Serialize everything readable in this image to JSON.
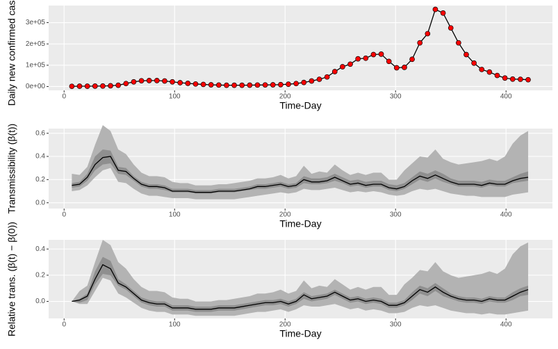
{
  "chart_data": [
    {
      "type": "line",
      "y_label": "Daily new confirmed cases",
      "x_label": "Time-Day",
      "x": [
        7,
        14,
        21,
        28,
        35,
        42,
        49,
        56,
        63,
        70,
        77,
        84,
        91,
        98,
        105,
        112,
        119,
        126,
        133,
        140,
        147,
        154,
        161,
        168,
        175,
        182,
        189,
        196,
        203,
        210,
        217,
        224,
        231,
        238,
        245,
        252,
        259,
        266,
        273,
        280,
        287,
        294,
        301,
        308,
        315,
        322,
        329,
        336,
        343,
        350,
        357,
        364,
        371,
        378,
        385,
        392,
        399,
        406,
        413,
        420
      ],
      "values": [
        1000,
        1500,
        1500,
        2000,
        2500,
        3500,
        6000,
        14000,
        22000,
        27000,
        28000,
        28000,
        26000,
        22000,
        18000,
        15000,
        12000,
        10000,
        8000,
        7000,
        6000,
        6000,
        6000,
        6500,
        7000,
        7500,
        8000,
        9000,
        11000,
        14000,
        19000,
        26000,
        34000,
        45000,
        70000,
        93000,
        105000,
        130000,
        133000,
        150000,
        152000,
        118000,
        88000,
        90000,
        128000,
        205000,
        248000,
        362000,
        345000,
        275000,
        205000,
        150000,
        110000,
        80000,
        68000,
        52000,
        40000,
        35000,
        34000,
        32000
      ],
      "color": "#000000",
      "marker_color": "#ff0000",
      "xlim": [
        -14,
        442
      ],
      "xticks": [
        0,
        100,
        200,
        300,
        400
      ],
      "ylim": [
        -18000,
        380000
      ],
      "yticks": [
        {
          "value": 0,
          "label": "0e+00"
        },
        {
          "value": 100000,
          "label": "1e+05"
        },
        {
          "value": 200000,
          "label": "2e+05"
        },
        {
          "value": 300000,
          "label": "3e+05"
        }
      ],
      "grid": true
    },
    {
      "type": "line",
      "y_label": "Transmissibility (β(t))",
      "x_label": "Time-Day",
      "x": [
        7,
        14,
        21,
        28,
        35,
        42,
        49,
        56,
        63,
        70,
        77,
        84,
        91,
        98,
        105,
        112,
        119,
        126,
        133,
        140,
        147,
        154,
        161,
        168,
        175,
        182,
        189,
        196,
        203,
        210,
        217,
        224,
        231,
        238,
        245,
        252,
        259,
        266,
        273,
        280,
        287,
        294,
        301,
        308,
        315,
        322,
        329,
        336,
        343,
        350,
        357,
        364,
        371,
        378,
        385,
        392,
        399,
        406,
        413,
        420
      ],
      "values": [
        0.15,
        0.16,
        0.22,
        0.33,
        0.39,
        0.4,
        0.28,
        0.27,
        0.21,
        0.16,
        0.14,
        0.14,
        0.13,
        0.1,
        0.1,
        0.1,
        0.09,
        0.09,
        0.09,
        0.1,
        0.1,
        0.1,
        0.11,
        0.12,
        0.14,
        0.14,
        0.15,
        0.16,
        0.14,
        0.15,
        0.2,
        0.18,
        0.18,
        0.19,
        0.22,
        0.19,
        0.16,
        0.17,
        0.15,
        0.16,
        0.16,
        0.13,
        0.12,
        0.14,
        0.19,
        0.23,
        0.21,
        0.24,
        0.21,
        0.18,
        0.16,
        0.16,
        0.16,
        0.15,
        0.17,
        0.16,
        0.16,
        0.19,
        0.21,
        0.22
      ],
      "inner_lower": [
        0.13,
        0.14,
        0.19,
        0.28,
        0.33,
        0.34,
        0.25,
        0.24,
        0.19,
        0.14,
        0.12,
        0.12,
        0.11,
        0.09,
        0.09,
        0.09,
        0.08,
        0.08,
        0.08,
        0.09,
        0.09,
        0.09,
        0.1,
        0.11,
        0.12,
        0.12,
        0.13,
        0.14,
        0.12,
        0.13,
        0.17,
        0.16,
        0.16,
        0.17,
        0.19,
        0.17,
        0.14,
        0.15,
        0.13,
        0.14,
        0.14,
        0.11,
        0.1,
        0.12,
        0.16,
        0.2,
        0.18,
        0.21,
        0.18,
        0.16,
        0.14,
        0.14,
        0.14,
        0.13,
        0.15,
        0.14,
        0.14,
        0.17,
        0.18,
        0.19
      ],
      "inner_upper": [
        0.17,
        0.18,
        0.25,
        0.4,
        0.46,
        0.45,
        0.31,
        0.3,
        0.23,
        0.18,
        0.16,
        0.16,
        0.15,
        0.12,
        0.12,
        0.12,
        0.11,
        0.11,
        0.11,
        0.12,
        0.12,
        0.12,
        0.13,
        0.14,
        0.16,
        0.16,
        0.17,
        0.18,
        0.16,
        0.17,
        0.23,
        0.21,
        0.21,
        0.22,
        0.25,
        0.22,
        0.19,
        0.2,
        0.18,
        0.19,
        0.19,
        0.16,
        0.15,
        0.17,
        0.22,
        0.27,
        0.25,
        0.28,
        0.25,
        0.21,
        0.19,
        0.19,
        0.19,
        0.18,
        0.2,
        0.19,
        0.19,
        0.22,
        0.25,
        0.27
      ],
      "outer_lower": [
        0.1,
        0.11,
        0.15,
        0.22,
        0.28,
        0.3,
        0.18,
        0.17,
        0.12,
        0.08,
        0.06,
        0.06,
        0.05,
        0.04,
        0.04,
        0.04,
        0.03,
        0.03,
        0.03,
        0.03,
        0.03,
        0.03,
        0.04,
        0.05,
        0.06,
        0.07,
        0.08,
        0.09,
        0.08,
        0.09,
        0.12,
        0.11,
        0.11,
        0.12,
        0.13,
        0.11,
        0.09,
        0.1,
        0.09,
        0.1,
        0.09,
        0.07,
        0.06,
        0.07,
        0.1,
        0.12,
        0.11,
        0.12,
        0.1,
        0.08,
        0.07,
        0.06,
        0.06,
        0.05,
        0.05,
        0.05,
        0.05,
        0.07,
        0.08,
        0.09
      ],
      "outer_upper": [
        0.25,
        0.24,
        0.31,
        0.5,
        0.67,
        0.62,
        0.46,
        0.42,
        0.33,
        0.26,
        0.23,
        0.23,
        0.22,
        0.18,
        0.17,
        0.17,
        0.15,
        0.15,
        0.15,
        0.16,
        0.16,
        0.17,
        0.18,
        0.19,
        0.21,
        0.21,
        0.22,
        0.24,
        0.21,
        0.23,
        0.32,
        0.25,
        0.27,
        0.26,
        0.33,
        0.28,
        0.24,
        0.26,
        0.24,
        0.26,
        0.26,
        0.2,
        0.2,
        0.28,
        0.34,
        0.4,
        0.39,
        0.46,
        0.38,
        0.35,
        0.33,
        0.34,
        0.35,
        0.36,
        0.38,
        0.36,
        0.4,
        0.51,
        0.58,
        0.62
      ],
      "color": "#000000",
      "inner_color": "#8f8f8f",
      "outer_color": "#b3b3b3",
      "xlim": [
        -14,
        442
      ],
      "xticks": [
        0,
        100,
        200,
        300,
        400
      ],
      "ylim": [
        -0.05,
        0.64
      ],
      "yticks": [
        {
          "value": 0,
          "label": "0.0"
        },
        0.2,
        0.4,
        0.6
      ],
      "grid": true
    },
    {
      "type": "line",
      "y_label": "Relative trans. (β(t) − β(0))",
      "x_label": "Time-Day",
      "x": [
        7,
        14,
        21,
        28,
        35,
        42,
        49,
        56,
        63,
        70,
        77,
        84,
        91,
        98,
        105,
        112,
        119,
        126,
        133,
        140,
        147,
        154,
        161,
        168,
        175,
        182,
        189,
        196,
        203,
        210,
        217,
        224,
        231,
        238,
        245,
        252,
        259,
        266,
        273,
        280,
        287,
        294,
        301,
        308,
        315,
        322,
        329,
        336,
        343,
        350,
        357,
        364,
        371,
        378,
        385,
        392,
        399,
        406,
        413,
        420
      ],
      "values": [
        0.0,
        0.01,
        0.04,
        0.17,
        0.28,
        0.25,
        0.14,
        0.11,
        0.06,
        0.01,
        -0.01,
        -0.02,
        -0.02,
        -0.05,
        -0.05,
        -0.05,
        -0.06,
        -0.06,
        -0.06,
        -0.05,
        -0.05,
        -0.05,
        -0.04,
        -0.03,
        -0.02,
        -0.01,
        -0.01,
        0.0,
        -0.02,
        0.0,
        0.05,
        0.02,
        0.03,
        0.04,
        0.07,
        0.04,
        0.01,
        0.02,
        0.0,
        0.01,
        0.0,
        -0.03,
        -0.03,
        -0.01,
        0.04,
        0.09,
        0.07,
        0.11,
        0.07,
        0.04,
        0.02,
        0.01,
        0.01,
        0.0,
        0.02,
        0.01,
        0.01,
        0.04,
        0.07,
        0.09
      ],
      "inner_lower": [
        0.0,
        -0.01,
        0.01,
        0.13,
        0.21,
        0.2,
        0.12,
        0.09,
        0.04,
        -0.01,
        -0.03,
        -0.04,
        -0.04,
        -0.07,
        -0.07,
        -0.07,
        -0.08,
        -0.08,
        -0.08,
        -0.07,
        -0.07,
        -0.07,
        -0.06,
        -0.05,
        -0.04,
        -0.03,
        -0.03,
        -0.02,
        -0.04,
        -0.02,
        0.02,
        0.0,
        0.01,
        0.02,
        0.05,
        0.02,
        -0.01,
        0.0,
        -0.02,
        -0.01,
        -0.02,
        -0.05,
        -0.05,
        -0.03,
        0.01,
        0.06,
        0.04,
        0.08,
        0.04,
        0.02,
        0.0,
        -0.01,
        -0.01,
        -0.02,
        0.0,
        -0.01,
        -0.01,
        0.01,
        0.04,
        0.05
      ],
      "inner_upper": [
        0.0,
        0.02,
        0.06,
        0.23,
        0.34,
        0.31,
        0.17,
        0.13,
        0.08,
        0.03,
        0.01,
        0.0,
        0.0,
        -0.03,
        -0.03,
        -0.03,
        -0.04,
        -0.04,
        -0.04,
        -0.03,
        -0.03,
        -0.03,
        -0.02,
        -0.01,
        0.0,
        0.01,
        0.01,
        0.02,
        0.0,
        0.02,
        0.07,
        0.04,
        0.05,
        0.06,
        0.09,
        0.06,
        0.03,
        0.04,
        0.02,
        0.03,
        0.02,
        -0.01,
        -0.01,
        0.01,
        0.07,
        0.12,
        0.1,
        0.14,
        0.1,
        0.06,
        0.04,
        0.03,
        0.03,
        0.02,
        0.04,
        0.03,
        0.03,
        0.07,
        0.1,
        0.12
      ],
      "outer_lower": [
        0.0,
        -0.02,
        -0.02,
        0.08,
        0.18,
        0.16,
        0.06,
        0.03,
        -0.01,
        -0.05,
        -0.07,
        -0.08,
        -0.08,
        -0.1,
        -0.1,
        -0.1,
        -0.11,
        -0.11,
        -0.11,
        -0.11,
        -0.11,
        -0.11,
        -0.1,
        -0.09,
        -0.08,
        -0.08,
        -0.07,
        -0.06,
        -0.08,
        -0.06,
        -0.03,
        -0.04,
        -0.04,
        -0.03,
        -0.02,
        -0.04,
        -0.06,
        -0.05,
        -0.07,
        -0.06,
        -0.07,
        -0.09,
        -0.09,
        -0.08,
        -0.05,
        -0.03,
        -0.04,
        -0.03,
        -0.05,
        -0.07,
        -0.08,
        -0.09,
        -0.09,
        -0.1,
        -0.09,
        -0.1,
        -0.1,
        -0.09,
        -0.08,
        -0.07
      ],
      "outer_upper": [
        0.0,
        0.08,
        0.12,
        0.3,
        0.47,
        0.43,
        0.3,
        0.25,
        0.17,
        0.11,
        0.08,
        0.08,
        0.07,
        0.03,
        0.02,
        0.02,
        0.0,
        0.0,
        0.0,
        0.01,
        0.01,
        0.02,
        0.03,
        0.04,
        0.06,
        0.06,
        0.07,
        0.09,
        0.06,
        0.08,
        0.16,
        0.1,
        0.12,
        0.11,
        0.17,
        0.13,
        0.09,
        0.11,
        0.09,
        0.11,
        0.11,
        0.05,
        0.05,
        0.13,
        0.18,
        0.24,
        0.23,
        0.3,
        0.23,
        0.2,
        0.18,
        0.19,
        0.2,
        0.21,
        0.23,
        0.21,
        0.25,
        0.36,
        0.42,
        0.45
      ],
      "color": "#000000",
      "inner_color": "#8f8f8f",
      "outer_color": "#b3b3b3",
      "xlim": [
        -14,
        442
      ],
      "xticks": [
        0,
        100,
        200,
        300,
        400
      ],
      "ylim": [
        -0.13,
        0.47
      ],
      "yticks": [
        {
          "value": 0,
          "label": "0.0"
        },
        0.2,
        0.4
      ],
      "grid": true
    }
  ]
}
